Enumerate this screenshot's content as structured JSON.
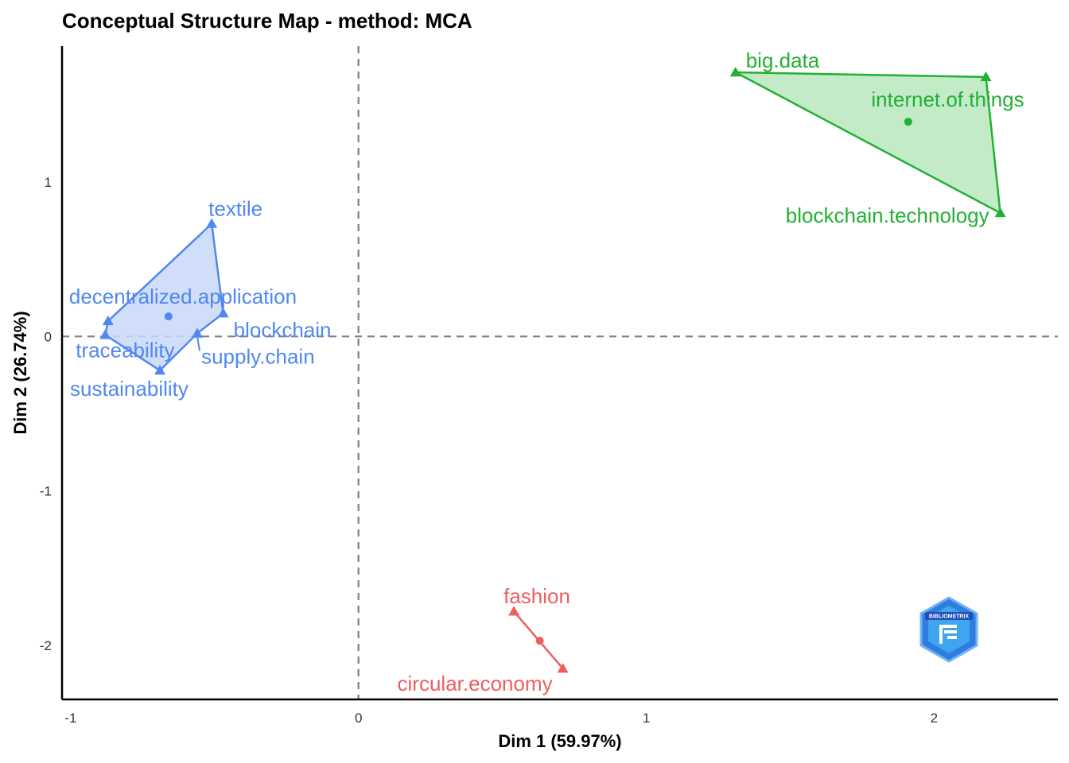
{
  "chart_data": {
    "type": "scatter",
    "title": "Conceptual Structure Map - method: MCA",
    "xlabel": "Dim 1 (59.97%)",
    "ylabel": "Dim 2 (26.74%)",
    "xlim": [
      -1.03,
      2.43
    ],
    "ylim": [
      -2.35,
      1.88
    ],
    "xticks": [
      -1,
      0,
      1,
      2
    ],
    "yticks": [
      1,
      0,
      -1,
      -2
    ],
    "reference_lines": {
      "x": 0,
      "y": 0,
      "style": "dashed"
    },
    "grid": false,
    "legend": "none",
    "clusters": [
      {
        "id": "cluster-1",
        "color": "#5088f0",
        "fill": "#c9d8f8",
        "centroid": {
          "x": -0.66,
          "y": 0.13
        },
        "points": [
          {
            "label": "textile",
            "x": -0.51,
            "y": 0.73,
            "label_anchor": "start",
            "label_dx": -4,
            "label_dy": -10
          },
          {
            "label": "decentralized.application",
            "x": -0.87,
            "y": 0.1,
            "label_anchor": "start",
            "label_dx": -49,
            "label_dy": -22
          },
          {
            "label": "blockchain",
            "x": -0.47,
            "y": 0.15,
            "label_anchor": "start",
            "label_dx": 13,
            "label_dy": 30
          },
          {
            "label": "supply.chain",
            "x": -0.56,
            "y": 0.02,
            "label_anchor": "start",
            "label_dx": 5,
            "label_dy": 38
          },
          {
            "label": "traceability",
            "x": -0.88,
            "y": 0.01,
            "label_anchor": "start",
            "label_dx": -37,
            "label_dy": 28
          },
          {
            "label": "sustainability",
            "x": -0.69,
            "y": -0.22,
            "label_anchor": "start",
            "label_dx": -113,
            "label_dy": 32
          }
        ],
        "hull": [
          "textile",
          "blockchain",
          "supply.chain",
          "sustainability",
          "traceability",
          "decentralized.application"
        ]
      },
      {
        "id": "cluster-2",
        "color": "#22b033",
        "fill": "#b9e8bd",
        "centroid": {
          "x": 1.91,
          "y": 1.39
        },
        "points": [
          {
            "label": "big.data",
            "x": 1.31,
            "y": 1.71,
            "label_anchor": "start",
            "label_dx": 13,
            "label_dy": -6
          },
          {
            "label": "internet.of.things",
            "x": 2.18,
            "y": 1.68,
            "label_anchor": "middle",
            "label_dx": -48,
            "label_dy": 37
          },
          {
            "label": "blockchain.technology",
            "x": 2.23,
            "y": 0.8,
            "label_anchor": "end",
            "label_dx": -14,
            "label_dy": 12
          }
        ],
        "hull": [
          "big.data",
          "internet.of.things",
          "blockchain.technology"
        ]
      },
      {
        "id": "cluster-3",
        "color": "#ec5f5f",
        "fill": "#f8c6c6",
        "centroid": {
          "x": 0.63,
          "y": -1.97
        },
        "points": [
          {
            "label": "fashion",
            "x": 0.54,
            "y": -1.78,
            "label_anchor": "start",
            "label_dx": -13,
            "label_dy": -10
          },
          {
            "label": "circular.economy",
            "x": 0.71,
            "y": -2.15,
            "label_anchor": "end",
            "label_dx": -13,
            "label_dy": 28
          }
        ],
        "hull": [
          "fashion",
          "circular.economy"
        ]
      }
    ]
  },
  "watermark": {
    "name": "bibliometrix-logo",
    "text": "BIBLIOMETRIX",
    "color": "#3b82f6"
  }
}
